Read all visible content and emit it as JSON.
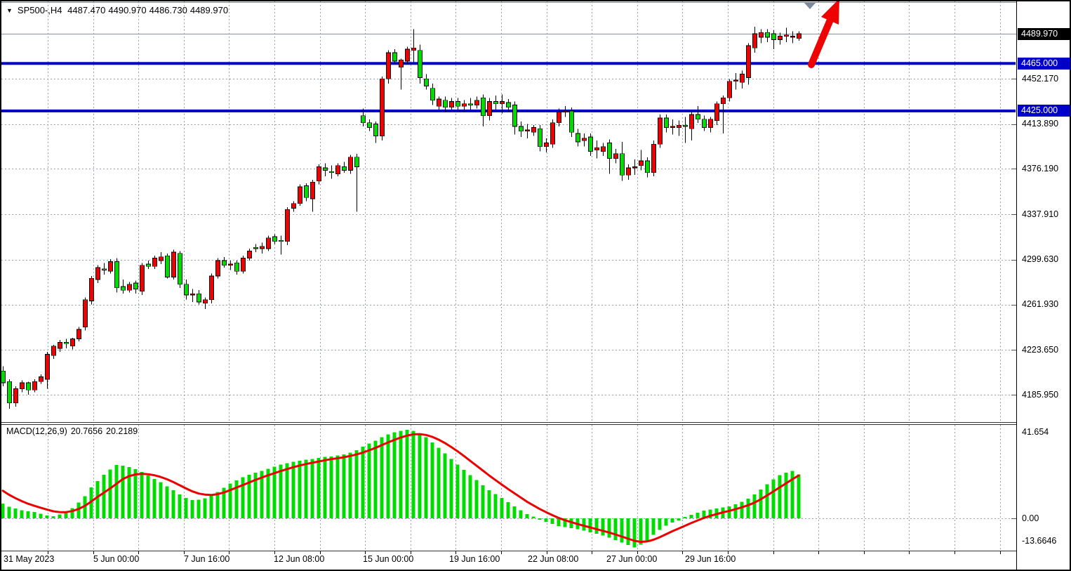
{
  "header": {
    "symbol_timeframe": "SP500-,H4",
    "open": "4487.470",
    "high": "4490.970",
    "low": "4486.730",
    "close": "4489.970"
  },
  "macd_panel": {
    "label": "MACD(12,26,9)",
    "macd_value": "20.7656",
    "signal_value": "20.2189"
  },
  "colors": {
    "bull": "#EE0202",
    "bear": "#00DC00",
    "wick": "#000000",
    "level_blue": "#0000C8",
    "badge_black": "#000000",
    "grid": "#98A0AC",
    "current_price_line": "#8A919C",
    "histogram": "#00DC00",
    "signal_line": "#ED0000",
    "arrow": "#EE0202",
    "marker": "#7B8A9D"
  },
  "chart_data": [
    {
      "type": "candlestick",
      "title": "SP500-,H4",
      "ohlc_display": {
        "open": 4487.47,
        "high": 4490.97,
        "low": 4486.73,
        "close": 4489.97
      },
      "current_price": 4489.97,
      "ylim": [
        4170,
        4500
      ],
      "grid": true,
      "price_ticks": [
        {
          "label": "4489.970",
          "price": 4489.97,
          "badge": "black"
        },
        {
          "label": "4465.000",
          "price": 4465.0,
          "badge": "blue"
        },
        {
          "label": "4452.170",
          "price": 4452.17,
          "badge": "none"
        },
        {
          "label": "4425.000",
          "price": 4425.0,
          "badge": "blue"
        },
        {
          "label": "4413.890",
          "price": 4413.89,
          "badge": "none"
        },
        {
          "label": "4376.190",
          "price": 4376.19,
          "badge": "none"
        },
        {
          "label": "4337.910",
          "price": 4337.91,
          "badge": "none"
        },
        {
          "label": "4299.630",
          "price": 4299.63,
          "badge": "none"
        },
        {
          "label": "4261.930",
          "price": 4261.93,
          "badge": "none"
        },
        {
          "label": "4223.650",
          "price": 4223.65,
          "badge": "none"
        },
        {
          "label": "4185.950",
          "price": 4185.95,
          "badge": "none"
        }
      ],
      "time_ticks": [
        {
          "label": "31 May 2023",
          "x": 5
        },
        {
          "label": "5 Jun 00:00",
          "x": 133
        },
        {
          "label": "7 Jun 16:00",
          "x": 262
        },
        {
          "label": "12 Jun 08:00",
          "x": 390
        },
        {
          "label": "15 Jun 00:00",
          "x": 517
        },
        {
          "label": "19 Jun 16:00",
          "x": 640
        },
        {
          "label": "22 Jun 08:00",
          "x": 752
        },
        {
          "label": "27 Jun 00:00",
          "x": 864
        },
        {
          "label": "29 Jun 16:00",
          "x": 976
        }
      ],
      "horizontal_levels": [
        {
          "price": 4465.0,
          "label": "4465.000"
        },
        {
          "price": 4425.0,
          "label": "4425.000"
        }
      ],
      "candles": [
        [
          4206,
          4210,
          4193,
          4196
        ],
        [
          4197,
          4199,
          4174,
          4179
        ],
        [
          4179,
          4193,
          4176,
          4191
        ],
        [
          4191,
          4198,
          4188,
          4196
        ],
        [
          4196,
          4197,
          4186,
          4190
        ],
        [
          4190,
          4199,
          4188,
          4197
        ],
        [
          4197,
          4203,
          4195,
          4201
        ],
        [
          4199,
          4222,
          4191,
          4220
        ],
        [
          4219,
          4228,
          4216,
          4227
        ],
        [
          4225,
          4232,
          4222,
          4230
        ],
        [
          4230,
          4233,
          4225,
          4229
        ],
        [
          4227,
          4234,
          4224,
          4233
        ],
        [
          4233,
          4243,
          4231,
          4241
        ],
        [
          4243,
          4268,
          4240,
          4266
        ],
        [
          4265,
          4286,
          4262,
          4284
        ],
        [
          4283,
          4295,
          4280,
          4293
        ],
        [
          4292,
          4297,
          4287,
          4291
        ],
        [
          4290,
          4300,
          4288,
          4298
        ],
        [
          4298,
          4301,
          4272,
          4276
        ],
        [
          4277,
          4283,
          4271,
          4274
        ],
        [
          4274,
          4281,
          4272,
          4279
        ],
        [
          4280,
          4282,
          4271,
          4275
        ],
        [
          4273,
          4297,
          4270,
          4295
        ],
        [
          4296,
          4299,
          4292,
          4294
        ],
        [
          4294,
          4303,
          4292,
          4301
        ],
        [
          4299,
          4306,
          4296,
          4302
        ],
        [
          4303,
          4305,
          4284,
          4285
        ],
        [
          4285,
          4308,
          4283,
          4306
        ],
        [
          4305,
          4307,
          4276,
          4279
        ],
        [
          4279,
          4283,
          4266,
          4270
        ],
        [
          4270,
          4275,
          4264,
          4271
        ],
        [
          4271,
          4274,
          4262,
          4264
        ],
        [
          4263,
          4268,
          4258,
          4266
        ],
        [
          4266,
          4288,
          4263,
          4286
        ],
        [
          4286,
          4301,
          4284,
          4299
        ],
        [
          4299,
          4302,
          4293,
          4295
        ],
        [
          4295,
          4299,
          4291,
          4296
        ],
        [
          4297,
          4299,
          4287,
          4290
        ],
        [
          4290,
          4303,
          4288,
          4301
        ],
        [
          4301,
          4309,
          4299,
          4307
        ],
        [
          4310,
          4313,
          4306,
          4309
        ],
        [
          4309,
          4314,
          4305,
          4311
        ],
        [
          4309,
          4320,
          4307,
          4318
        ],
        [
          4319,
          4321,
          4313,
          4315
        ],
        [
          4316,
          4320,
          4304,
          4315
        ],
        [
          4315,
          4344,
          4312,
          4342
        ],
        [
          4343,
          4349,
          4340,
          4347
        ],
        [
          4347,
          4363,
          4345,
          4361
        ],
        [
          4362,
          4364,
          4349,
          4352
        ],
        [
          4351,
          4367,
          4340,
          4365
        ],
        [
          4366,
          4380,
          4363,
          4378
        ],
        [
          4377,
          4381,
          4370,
          4375
        ],
        [
          4374,
          4379,
          4368,
          4373
        ],
        [
          4372,
          4381,
          4370,
          4379
        ],
        [
          4378,
          4382,
          4373,
          4375
        ],
        [
          4375,
          4388,
          4372,
          4386
        ],
        [
          4386,
          4389,
          4340,
          4378
        ],
        [
          4421,
          4427,
          4412,
          4415
        ],
        [
          4415,
          4418,
          4408,
          4411
        ],
        [
          4414,
          4416,
          4398,
          4404
        ],
        [
          4404,
          4454,
          4400,
          4452
        ],
        [
          4452,
          4476,
          4448,
          4474
        ],
        [
          4474,
          4477,
          4465,
          4467
        ],
        [
          4462,
          4469,
          4443,
          4468
        ],
        [
          4467,
          4479,
          4464,
          4477
        ],
        [
          4476,
          4494,
          4466,
          4478
        ],
        [
          4476,
          4481,
          4448,
          4453
        ],
        [
          4452,
          4456,
          4443,
          4446
        ],
        [
          4444,
          4448,
          4430,
          4434
        ],
        [
          4429,
          4437,
          4426,
          4435
        ],
        [
          4434,
          4437,
          4424,
          4428
        ],
        [
          4428,
          4436,
          4426,
          4433
        ],
        [
          4433,
          4436,
          4425,
          4429
        ],
        [
          4429,
          4434,
          4424,
          4431
        ],
        [
          4431,
          4436,
          4426,
          4430
        ],
        [
          4430,
          4437,
          4427,
          4434
        ],
        [
          4436,
          4439,
          4412,
          4421
        ],
        [
          4421,
          4436,
          4417,
          4433
        ],
        [
          4433,
          4438,
          4426,
          4431
        ],
        [
          4431,
          4439,
          4423,
          4433
        ],
        [
          4432,
          4435,
          4424,
          4428
        ],
        [
          4430,
          4433,
          4405,
          4412
        ],
        [
          4412,
          4416,
          4403,
          4408
        ],
        [
          4408,
          4414,
          4402,
          4409
        ],
        [
          4407,
          4413,
          4404,
          4411
        ],
        [
          4410,
          4413,
          4391,
          4395
        ],
        [
          4395,
          4402,
          4390,
          4398
        ],
        [
          4397,
          4418,
          4394,
          4415
        ],
        [
          4415,
          4427,
          4412,
          4424
        ],
        [
          4424,
          4429,
          4420,
          4425
        ],
        [
          4425,
          4428,
          4403,
          4407
        ],
        [
          4406,
          4410,
          4395,
          4399
        ],
        [
          4400,
          4406,
          4395,
          4402
        ],
        [
          4403,
          4406,
          4387,
          4391
        ],
        [
          4392,
          4400,
          4385,
          4394
        ],
        [
          4391,
          4398,
          4387,
          4395
        ],
        [
          4398,
          4401,
          4372,
          4385
        ],
        [
          4385,
          4393,
          4381,
          4389
        ],
        [
          4389,
          4399,
          4366,
          4371
        ],
        [
          4371,
          4380,
          4367,
          4377
        ],
        [
          4377,
          4384,
          4371,
          4378
        ],
        [
          4379,
          4392,
          4375,
          4383
        ],
        [
          4383,
          4386,
          4369,
          4373
        ],
        [
          4373,
          4400,
          4370,
          4397
        ],
        [
          4397,
          4422,
          4394,
          4419
        ],
        [
          4419,
          4422,
          4407,
          4411
        ],
        [
          4411,
          4418,
          4405,
          4412
        ],
        [
          4411,
          4417,
          4404,
          4413
        ],
        [
          4413,
          4420,
          4398,
          4412
        ],
        [
          4410,
          4425,
          4400,
          4422
        ],
        [
          4422,
          4429,
          4415,
          4418
        ],
        [
          4418,
          4421,
          4408,
          4411
        ],
        [
          4411,
          4420,
          4407,
          4418
        ],
        [
          4417,
          4433,
          4413,
          4431
        ],
        [
          4431,
          4438,
          4406,
          4436
        ],
        [
          4436,
          4452,
          4433,
          4450
        ],
        [
          4450,
          4457,
          4443,
          4451
        ],
        [
          4449,
          4459,
          4444,
          4456
        ],
        [
          4453,
          4482,
          4447,
          4480
        ],
        [
          4478,
          4496,
          4474,
          4490
        ],
        [
          4487,
          4494,
          4482,
          4491
        ],
        [
          4491,
          4494,
          4483,
          4487
        ],
        [
          4490,
          4493,
          4477,
          4485
        ],
        [
          4485,
          4491,
          4481,
          4488
        ],
        [
          4488,
          4495,
          4483,
          4489
        ],
        [
          4487,
          4492,
          4482,
          4488
        ],
        [
          4486,
          4492,
          4484,
          4490
        ]
      ]
    },
    {
      "type": "bar",
      "title": "MACD(12,26,9)",
      "ylabel": "",
      "axis_ticks": [
        {
          "label": "41.654",
          "value": 41.654
        },
        {
          "label": "0.00",
          "value": 0
        },
        {
          "label": "-13.6646",
          "value": -13.6646
        }
      ],
      "ylim": [
        -13.6646,
        41.654
      ],
      "histogram": [
        7.0,
        5.5,
        4.6,
        3.8,
        3.3,
        3.0,
        2.2,
        1.4,
        1.0,
        1.8,
        3.0,
        4.8,
        7.5,
        10.5,
        14.5,
        17.5,
        20.5,
        23.0,
        25.2,
        24.8,
        24.2,
        23.2,
        21.8,
        20.2,
        18.6,
        17.0,
        15.0,
        13.2,
        11.2,
        9.6,
        8.6,
        8.8,
        9.5,
        10.6,
        12.4,
        14.4,
        16.4,
        17.9,
        19.4,
        20.5,
        21.5,
        22.4,
        23.4,
        24.4,
        25.4,
        26.0,
        26.6,
        27.1,
        27.6,
        28.0,
        28.5,
        29.0,
        29.2,
        29.6,
        30.1,
        31.0,
        32.2,
        33.8,
        35.2,
        36.6,
        38.2,
        39.6,
        40.6,
        41.2,
        41.654,
        41.2,
        40.0,
        38.2,
        35.8,
        33.2,
        30.6,
        28.0,
        25.4,
        22.8,
        20.4,
        18.0,
        15.6,
        13.2,
        11.4,
        9.6,
        7.6,
        5.6,
        3.8,
        2.0,
        0.8,
        -0.6,
        -1.6,
        -2.6,
        -3.6,
        -4.2,
        -4.6,
        -5.2,
        -5.8,
        -6.6,
        -7.3,
        -8.1,
        -9.1,
        -10.2,
        -11.4,
        -12.6,
        -13.66,
        -12.4,
        -10.4,
        -7.8,
        -5.4,
        -3.4,
        -2.0,
        -1.0,
        0.6,
        1.6,
        2.6,
        3.6,
        4.1,
        4.6,
        5.1,
        5.7,
        6.6,
        7.7,
        9.2,
        11.2,
        13.6,
        16.0,
        18.4,
        20.4,
        21.6,
        22.4,
        20.77
      ],
      "signal": [
        13.0,
        11.1,
        9.5,
        8.1,
        6.9,
        5.9,
        5.0,
        4.1,
        3.3,
        2.9,
        2.9,
        3.4,
        4.4,
        5.9,
        7.9,
        10.1,
        12.1,
        14.1,
        16.3,
        18.5,
        19.9,
        20.7,
        21.0,
        20.8,
        20.3,
        19.5,
        18.4,
        17.1,
        15.6,
        14.1,
        12.7,
        11.7,
        11.2,
        11.0,
        11.4,
        12.2,
        13.3,
        14.5,
        15.7,
        16.9,
        18.1,
        19.2,
        20.3,
        21.3,
        22.3,
        23.2,
        24.1,
        24.9,
        25.6,
        26.2,
        26.8,
        27.4,
        27.9,
        28.3,
        28.8,
        29.4,
        30.1,
        31.0,
        32.1,
        33.2,
        34.5,
        35.8,
        37.0,
        38.1,
        39.0,
        39.6,
        39.7,
        39.3,
        38.4,
        37.1,
        35.5,
        33.6,
        31.6,
        29.4,
        27.1,
        24.8,
        22.5,
        20.2,
        18.0,
        15.9,
        13.8,
        11.8,
        9.8,
        7.8,
        6.1,
        4.4,
        2.9,
        1.5,
        0.2,
        -0.9,
        -1.8,
        -2.7,
        -3.5,
        -4.3,
        -5.1,
        -5.9,
        -6.7,
        -7.6,
        -8.6,
        -9.6,
        -10.6,
        -11.1,
        -10.9,
        -10.1,
        -8.9,
        -7.5,
        -6.1,
        -4.8,
        -3.5,
        -2.2,
        -1.0,
        0.2,
        1.2,
        2.0,
        2.8,
        3.5,
        4.3,
        5.2,
        6.2,
        7.4,
        9.0,
        10.8,
        12.7,
        14.6,
        16.5,
        18.4,
        20.2
      ],
      "current_values": {
        "macd": 20.7656,
        "signal": 20.2189
      }
    }
  ]
}
